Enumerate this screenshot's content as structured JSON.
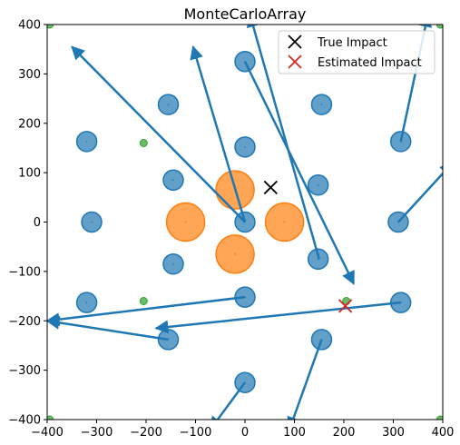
{
  "chart_data": {
    "type": "scatter",
    "title": "MonteCarloArray",
    "xlabel": "",
    "ylabel": "",
    "xlim": [
      -400,
      400
    ],
    "ylim": [
      -400,
      400
    ],
    "x_ticks": [
      -400,
      -300,
      -200,
      -100,
      0,
      100,
      200,
      300,
      400
    ],
    "y_ticks": [
      -400,
      -300,
      -200,
      -100,
      0,
      100,
      200,
      300,
      400
    ],
    "x_tick_labels": [
      "−400",
      "−300",
      "−200",
      "−100",
      "0",
      "100",
      "200",
      "300",
      "400"
    ],
    "y_tick_labels": [
      "−400",
      "−300",
      "−200",
      "−100",
      "0",
      "100",
      "200",
      "300",
      "400"
    ],
    "grid": false,
    "legend_position": "top-right",
    "colors": {
      "blue": "#1f77b4",
      "orange": "#ff7f0e",
      "green": "#2ca02c",
      "true": "#000000",
      "estimated": "#d62728"
    },
    "sensors_large": [
      {
        "x": -120,
        "y": 0
      },
      {
        "x": 80,
        "y": 0
      },
      {
        "x": -20,
        "y": 65
      },
      {
        "x": -20,
        "y": -65
      }
    ],
    "sensors_medium": [
      {
        "x": -155,
        "y": 238
      },
      {
        "x": 155,
        "y": 238
      },
      {
        "x": 0,
        "y": 325
      },
      {
        "x": 0,
        "y": 152
      },
      {
        "x": -320,
        "y": 163
      },
      {
        "x": 315,
        "y": 163
      },
      {
        "x": -145,
        "y": 85
      },
      {
        "x": 148,
        "y": 75
      },
      {
        "x": -310,
        "y": 0
      },
      {
        "x": 0,
        "y": 0
      },
      {
        "x": 310,
        "y": 0
      },
      {
        "x": -145,
        "y": -85
      },
      {
        "x": 148,
        "y": -75
      },
      {
        "x": -320,
        "y": -163
      },
      {
        "x": 0,
        "y": -152
      },
      {
        "x": 315,
        "y": -163
      },
      {
        "x": -155,
        "y": -238
      },
      {
        "x": 155,
        "y": -238
      },
      {
        "x": 0,
        "y": -325
      }
    ],
    "sensors_small": [
      {
        "x": -395,
        "y": 400
      },
      {
        "x": 395,
        "y": 400
      },
      {
        "x": -205,
        "y": 160
      },
      {
        "x": -205,
        "y": -160
      },
      {
        "x": 205,
        "y": -160
      },
      {
        "x": -395,
        "y": -400
      },
      {
        "x": 395,
        "y": -400
      }
    ],
    "arrows": [
      {
        "from": [
          0,
          0
        ],
        "to": [
          -350,
          355
        ]
      },
      {
        "from": [
          0,
          0
        ],
        "to": [
          -105,
          355
        ]
      },
      {
        "from": [
          150,
          -75
        ],
        "to": [
          10,
          420
        ]
      },
      {
        "from": [
          0,
          325
        ],
        "to": [
          220,
          -125
        ]
      },
      {
        "from": [
          315,
          163
        ],
        "to": [
          370,
          420
        ]
      },
      {
        "from": [
          310,
          0
        ],
        "to": [
          420,
          120
        ]
      },
      {
        "from": [
          0,
          -152
        ],
        "to": [
          -400,
          -200
        ]
      },
      {
        "from": [
          -155,
          -238
        ],
        "to": [
          -400,
          -200
        ]
      },
      {
        "from": [
          315,
          -163
        ],
        "to": [
          -180,
          -215
        ]
      },
      {
        "from": [
          0,
          -325
        ],
        "to": [
          -70,
          -420
        ]
      },
      {
        "from": [
          155,
          -238
        ],
        "to": [
          90,
          -420
        ]
      }
    ],
    "true_impact": {
      "x": 52,
      "y": 70
    },
    "estimated_impact": {
      "x": 203,
      "y": -170
    },
    "legend": [
      {
        "label": "True Impact",
        "marker": "x",
        "color": "#000000"
      },
      {
        "label": "Estimated Impact",
        "marker": "x",
        "color": "#d62728"
      }
    ]
  }
}
